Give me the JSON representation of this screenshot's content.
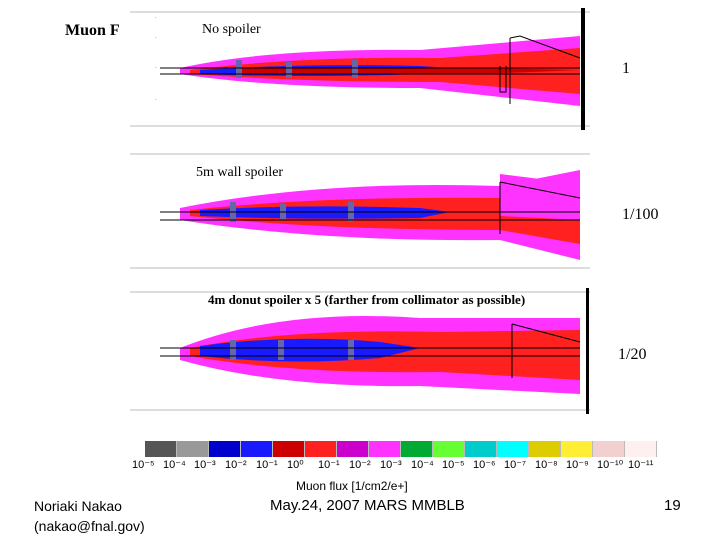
{
  "title": "Muon Flux",
  "panels": [
    {
      "label": "No spoiler",
      "ratio": "1"
    },
    {
      "label": "5m wall spoiler",
      "ratio": "1/100"
    },
    {
      "label": "4m donut spoiler x 5 (farther from collimator as possible)",
      "ratio": "1/20"
    }
  ],
  "colorbar": {
    "colors": [
      "#555555",
      "#999999",
      "#0000cc",
      "#1a1aff",
      "#cc0000",
      "#ff2020",
      "#cc00cc",
      "#ff33ff",
      "#00aa33",
      "#66ff33",
      "#00cccc",
      "#00ffff",
      "#ddcc00",
      "#ffee33",
      "#f2d0d0",
      "#fff0f0"
    ],
    "ticks": [
      "10⁻⁵",
      "10⁻⁴",
      "10⁻³",
      "10⁻²",
      "10⁻¹",
      "10⁰",
      "10⁻¹",
      "10⁻²",
      "10⁻³",
      "10⁻⁴",
      "10⁻⁵",
      "10⁻⁶",
      "10⁻⁷",
      "10⁻⁸",
      "10⁻⁹",
      "10⁻¹⁰",
      "10⁻¹¹"
    ],
    "label": "Muon flux [1/cm2/e+]"
  },
  "footer": {
    "author": "Noriaki Nakao",
    "email": "(nakao@fnal.gov)",
    "event": "May.24, 2007 MARS MMBLB",
    "page": "19"
  }
}
